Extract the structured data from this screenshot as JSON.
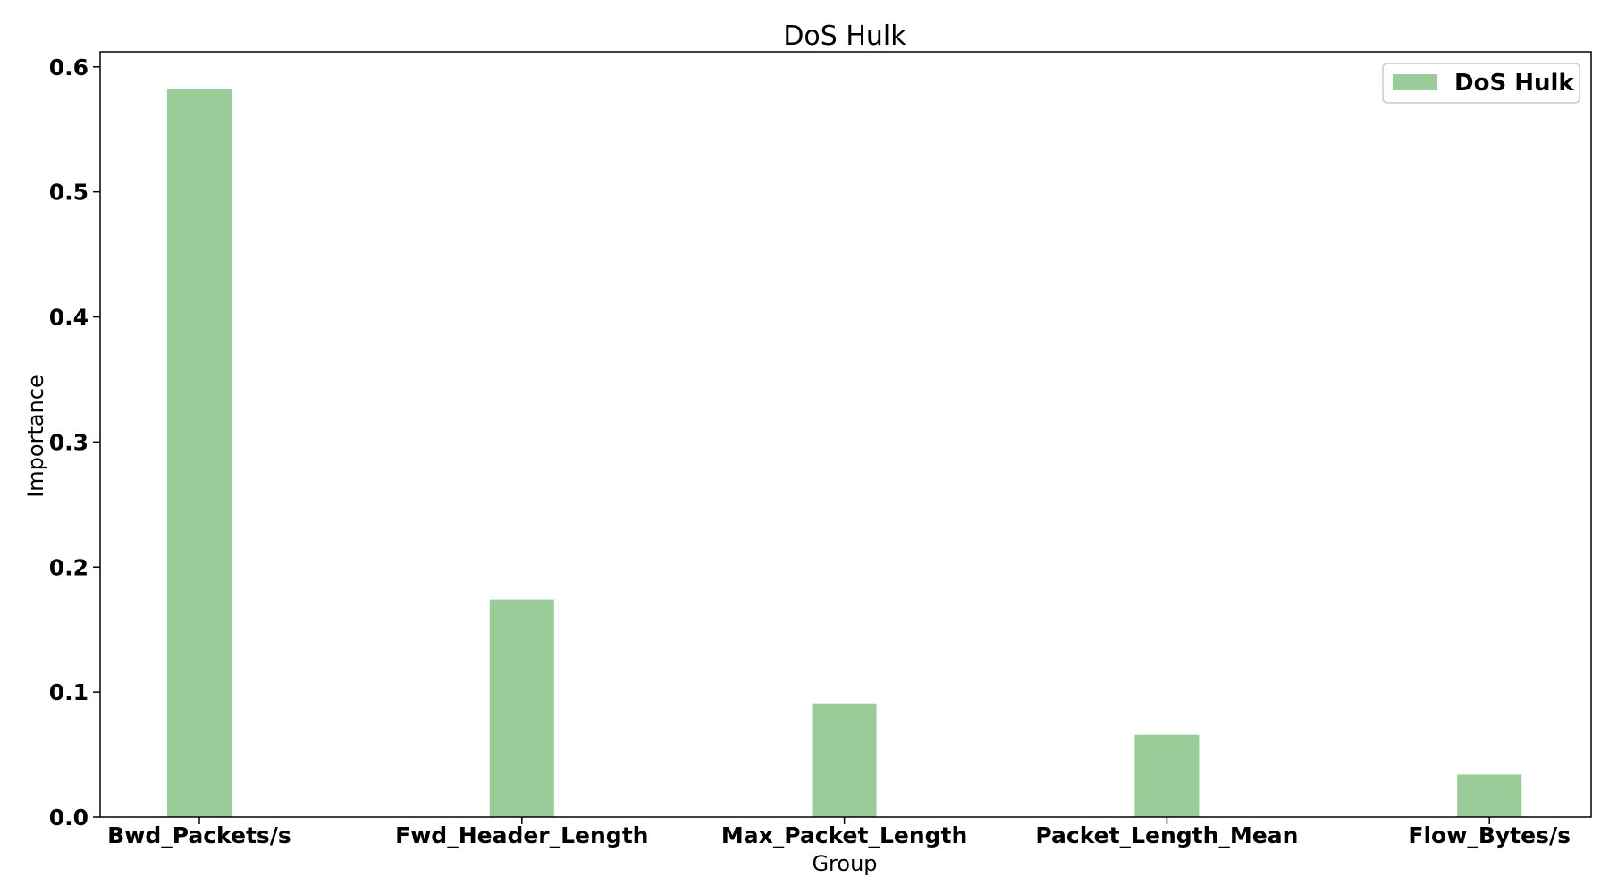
{
  "chart_data": {
    "type": "bar",
    "title": "DoS Hulk",
    "xlabel": "Group",
    "ylabel": "Importance",
    "categories": [
      "Bwd_Packets/s",
      "Fwd_Header_Length",
      "Max_Packet_Length",
      "Packet_Length_Mean",
      "Flow_Bytes/s"
    ],
    "series": [
      {
        "name": "DoS Hulk",
        "values": [
          0.582,
          0.174,
          0.091,
          0.066,
          0.034
        ],
        "color": "#99cc99"
      }
    ],
    "ylim": [
      0,
      0.612
    ],
    "yticks": [
      "0.0",
      "0.1",
      "0.2",
      "0.3",
      "0.4",
      "0.5",
      "0.6"
    ],
    "grid": false,
    "legend_position": "top-right"
  }
}
